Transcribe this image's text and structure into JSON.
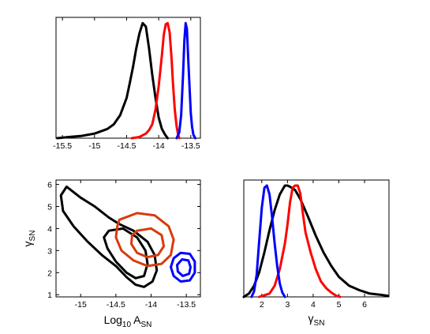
{
  "chart_data": [
    {
      "type": "line",
      "title": "",
      "xlabel": "",
      "ylabel": "",
      "xlim": [
        -15.6,
        -13.35
      ],
      "ylim": [
        0,
        1.05
      ],
      "xticks": [
        "-15.5",
        "-15",
        "-14.5",
        "-14",
        "-13.5"
      ],
      "xtick_values": [
        -15.5,
        -15,
        -14.5,
        -14,
        -13.5
      ],
      "grid": false,
      "series": [
        {
          "color": "#000000",
          "x": [
            -15.58,
            -15.4,
            -15.2,
            -15.0,
            -14.8,
            -14.7,
            -14.6,
            -14.5,
            -14.45,
            -14.4,
            -14.35,
            -14.3,
            -14.25,
            -14.2,
            -14.15,
            -14.1,
            -14.05,
            -14.0,
            -13.95,
            -13.9,
            -13.86
          ],
          "y": [
            0.0,
            0.01,
            0.02,
            0.04,
            0.08,
            0.12,
            0.2,
            0.35,
            0.48,
            0.62,
            0.78,
            0.91,
            1.0,
            0.97,
            0.78,
            0.55,
            0.35,
            0.18,
            0.08,
            0.03,
            0.0
          ]
        },
        {
          "color": "#ff0000",
          "x": [
            -14.42,
            -14.3,
            -14.2,
            -14.15,
            -14.1,
            -14.05,
            -14.0,
            -13.95,
            -13.92,
            -13.89,
            -13.86,
            -13.83,
            -13.8,
            -13.78,
            -13.75,
            -13.72,
            -13.7,
            -13.68
          ],
          "y": [
            0.0,
            0.01,
            0.04,
            0.07,
            0.12,
            0.25,
            0.45,
            0.72,
            0.9,
            0.99,
            1.0,
            0.92,
            0.7,
            0.5,
            0.25,
            0.1,
            0.04,
            0.0
          ]
        },
        {
          "color": "#0000ff",
          "x": [
            -13.72,
            -13.68,
            -13.65,
            -13.62,
            -13.6,
            -13.58,
            -13.56,
            -13.54,
            -13.52,
            -13.5,
            -13.48,
            -13.46,
            -13.43
          ],
          "y": [
            0.0,
            0.05,
            0.2,
            0.55,
            0.85,
            1.0,
            0.95,
            0.7,
            0.45,
            0.22,
            0.1,
            0.03,
            0.0
          ]
        }
      ]
    },
    {
      "type": "scatter",
      "title": "",
      "xlabel": "Log10 ASN",
      "xlabel_parts": {
        "main": "Log",
        "sub1": "10",
        "mid": " A",
        "sub2": "SN"
      },
      "ylabel": "γSN",
      "ylabel_parts": {
        "main": "γ",
        "sub": "SN"
      },
      "xlim": [
        -15.35,
        -13.3
      ],
      "ylim": [
        0.9,
        6.2
      ],
      "xticks": [
        "-15",
        "-14.5",
        "-14",
        "-13.5"
      ],
      "xtick_values": [
        -15,
        -14.5,
        -14,
        -13.5
      ],
      "yticks": [
        "1",
        "2",
        "3",
        "4",
        "5",
        "6"
      ],
      "ytick_values": [
        1,
        2,
        3,
        4,
        5,
        6
      ],
      "grid": false,
      "contours": [
        {
          "color": "#000000",
          "level": "outer",
          "points": [
            [
              -15.2,
              5.9
            ],
            [
              -15.0,
              5.4
            ],
            [
              -14.8,
              5.0
            ],
            [
              -14.6,
              4.5
            ],
            [
              -14.45,
              4.2
            ],
            [
              -14.25,
              3.9
            ],
            [
              -14.05,
              3.4
            ],
            [
              -13.95,
              2.8
            ],
            [
              -13.92,
              2.1
            ],
            [
              -13.98,
              1.6
            ],
            [
              -14.1,
              1.35
            ],
            [
              -14.22,
              1.45
            ],
            [
              -14.35,
              1.8
            ],
            [
              -14.5,
              2.3
            ],
            [
              -14.7,
              2.8
            ],
            [
              -14.9,
              3.4
            ],
            [
              -15.1,
              4.1
            ],
            [
              -15.25,
              4.8
            ],
            [
              -15.28,
              5.5
            ],
            [
              -15.2,
              5.9
            ]
          ]
        },
        {
          "color": "#000000",
          "level": "inner",
          "points": [
            [
              -14.6,
              3.9
            ],
            [
              -14.4,
              4.0
            ],
            [
              -14.2,
              3.6
            ],
            [
              -14.08,
              3.0
            ],
            [
              -14.05,
              2.4
            ],
            [
              -14.1,
              1.85
            ],
            [
              -14.22,
              1.75
            ],
            [
              -14.35,
              2.0
            ],
            [
              -14.5,
              2.5
            ],
            [
              -14.62,
              3.1
            ],
            [
              -14.67,
              3.6
            ],
            [
              -14.6,
              3.9
            ]
          ]
        },
        {
          "color": "#d83b0b",
          "level": "outer",
          "points": [
            [
              -14.45,
              4.4
            ],
            [
              -14.2,
              4.7
            ],
            [
              -13.95,
              4.6
            ],
            [
              -13.75,
              4.1
            ],
            [
              -13.68,
              3.5
            ],
            [
              -13.72,
              2.8
            ],
            [
              -13.85,
              2.4
            ],
            [
              -14.05,
              2.3
            ],
            [
              -14.25,
              2.55
            ],
            [
              -14.42,
              3.0
            ],
            [
              -14.5,
              3.6
            ],
            [
              -14.48,
              4.1
            ],
            [
              -14.45,
              4.4
            ]
          ]
        },
        {
          "color": "#d83b0b",
          "level": "inner",
          "points": [
            [
              -14.2,
              3.9
            ],
            [
              -14.0,
              4.0
            ],
            [
              -13.85,
              3.7
            ],
            [
              -13.82,
              3.2
            ],
            [
              -13.9,
              2.8
            ],
            [
              -14.05,
              2.7
            ],
            [
              -14.2,
              2.9
            ],
            [
              -14.28,
              3.3
            ],
            [
              -14.27,
              3.7
            ],
            [
              -14.2,
              3.9
            ]
          ]
        },
        {
          "color": "#0000ff",
          "level": "outer",
          "points": [
            [
              -13.58,
              2.9
            ],
            [
              -13.45,
              2.85
            ],
            [
              -13.38,
              2.5
            ],
            [
              -13.38,
              2.0
            ],
            [
              -13.45,
              1.65
            ],
            [
              -13.58,
              1.6
            ],
            [
              -13.68,
              1.85
            ],
            [
              -13.72,
              2.25
            ],
            [
              -13.68,
              2.65
            ],
            [
              -13.58,
              2.9
            ]
          ]
        },
        {
          "color": "#0000ff",
          "level": "inner",
          "points": [
            [
              -13.56,
              2.6
            ],
            [
              -13.47,
              2.55
            ],
            [
              -13.44,
              2.25
            ],
            [
              -13.46,
              1.95
            ],
            [
              -13.55,
              1.85
            ],
            [
              -13.62,
              2.05
            ],
            [
              -13.63,
              2.35
            ],
            [
              -13.56,
              2.6
            ]
          ]
        }
      ]
    },
    {
      "type": "line",
      "title": "",
      "xlabel": "γSN",
      "xlabel_parts": {
        "main": "γ",
        "sub": "SN"
      },
      "ylabel": "",
      "xlim": [
        1.3,
        6.95
      ],
      "ylim": [
        0,
        1.05
      ],
      "xticks": [
        "2",
        "3",
        "4",
        "5",
        "6"
      ],
      "xtick_values": [
        2,
        3,
        4,
        5,
        6
      ],
      "grid": false,
      "series": [
        {
          "color": "#000000",
          "x": [
            1.3,
            1.5,
            1.7,
            1.9,
            2.1,
            2.3,
            2.5,
            2.7,
            2.9,
            3.0,
            3.1,
            3.3,
            3.5,
            3.8,
            4.1,
            4.4,
            4.7,
            5.0,
            5.4,
            5.8,
            6.2,
            6.6,
            6.9
          ],
          "y": [
            0.0,
            0.03,
            0.1,
            0.22,
            0.4,
            0.6,
            0.78,
            0.92,
            1.0,
            1.0,
            0.99,
            0.96,
            0.88,
            0.72,
            0.55,
            0.4,
            0.28,
            0.18,
            0.1,
            0.06,
            0.03,
            0.02,
            0.01
          ]
        },
        {
          "color": "#ff0000",
          "x": [
            1.9,
            2.3,
            2.5,
            2.7,
            2.9,
            3.0,
            3.1,
            3.2,
            3.3,
            3.4,
            3.5,
            3.6,
            3.7,
            3.9,
            4.1,
            4.3,
            4.5,
            4.7,
            4.9,
            5.05
          ],
          "y": [
            0.0,
            0.03,
            0.1,
            0.25,
            0.48,
            0.65,
            0.85,
            0.98,
            1.0,
            1.0,
            0.93,
            0.75,
            0.58,
            0.4,
            0.25,
            0.14,
            0.08,
            0.04,
            0.01,
            0.0
          ]
        },
        {
          "color": "#0000ff",
          "x": [
            1.6,
            1.7,
            1.8,
            1.9,
            2.0,
            2.1,
            2.2,
            2.3,
            2.4,
            2.5,
            2.6,
            2.7,
            2.8,
            2.9
          ],
          "y": [
            0.0,
            0.05,
            0.2,
            0.5,
            0.8,
            0.98,
            1.0,
            0.92,
            0.72,
            0.48,
            0.28,
            0.12,
            0.04,
            0.0
          ]
        }
      ]
    }
  ]
}
